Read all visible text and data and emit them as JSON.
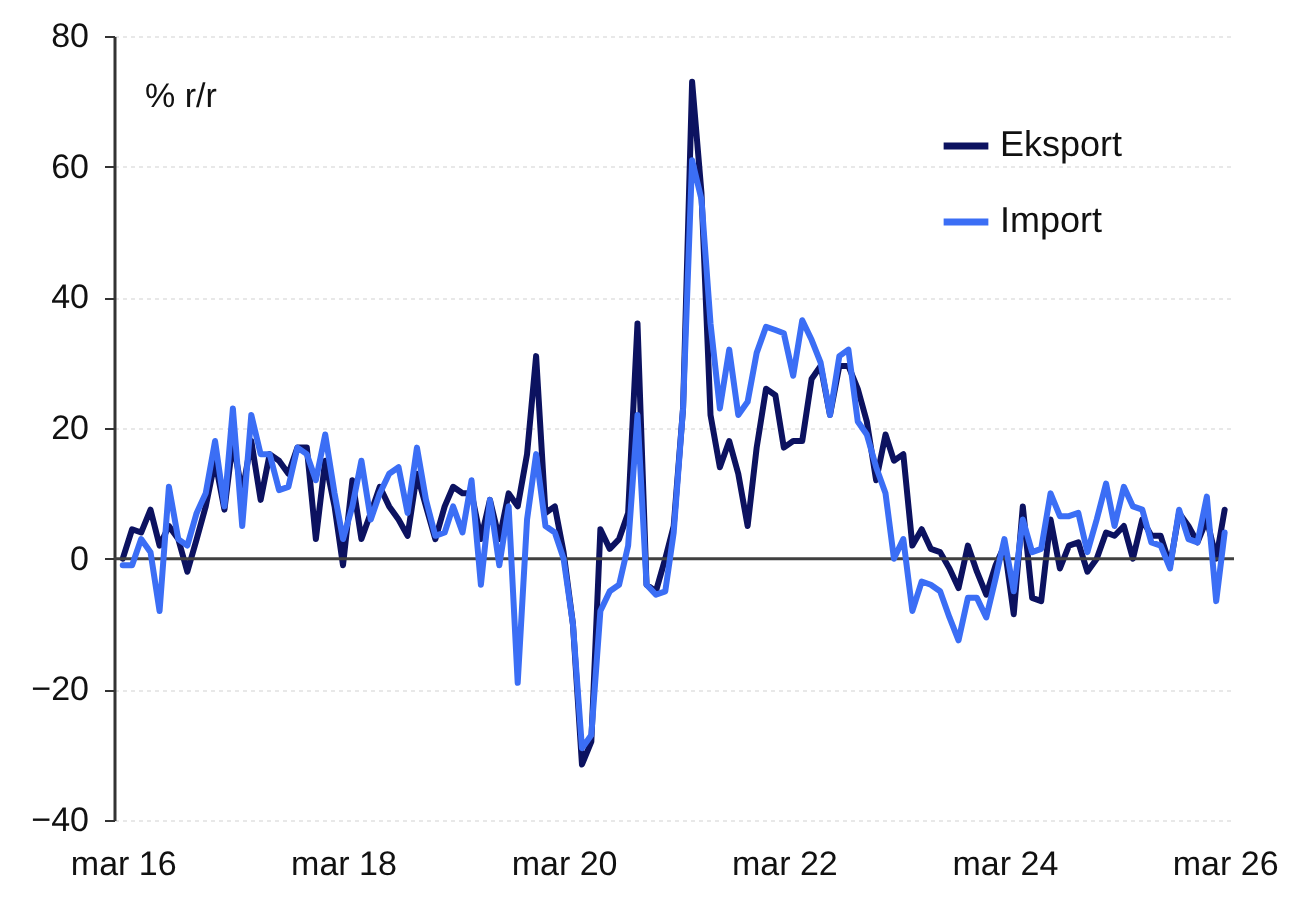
{
  "chart_data": {
    "type": "line",
    "ylabel": "% r/r",
    "x": [
      "2016-03",
      "2016-04",
      "2016-05",
      "2016-06",
      "2016-07",
      "2016-08",
      "2016-09",
      "2016-10",
      "2016-11",
      "2016-12",
      "2017-01",
      "2017-02",
      "2017-03",
      "2017-04",
      "2017-05",
      "2017-06",
      "2017-07",
      "2017-08",
      "2017-09",
      "2017-10",
      "2017-11",
      "2017-12",
      "2018-01",
      "2018-02",
      "2018-03",
      "2018-04",
      "2018-05",
      "2018-06",
      "2018-07",
      "2018-08",
      "2018-09",
      "2018-10",
      "2018-11",
      "2018-12",
      "2019-01",
      "2019-02",
      "2019-03",
      "2019-04",
      "2019-05",
      "2019-06",
      "2019-07",
      "2019-08",
      "2019-09",
      "2019-10",
      "2019-11",
      "2019-12",
      "2020-01",
      "2020-02",
      "2020-03",
      "2020-04",
      "2020-05",
      "2020-06",
      "2020-07",
      "2020-08",
      "2020-09",
      "2020-10",
      "2020-11",
      "2020-12",
      "2021-01",
      "2021-02",
      "2021-03",
      "2021-04",
      "2021-05",
      "2021-06",
      "2021-07",
      "2021-08",
      "2021-09",
      "2021-10",
      "2021-11",
      "2021-12",
      "2022-01",
      "2022-02",
      "2022-03",
      "2022-04",
      "2022-05",
      "2022-06",
      "2022-07",
      "2022-08",
      "2022-09",
      "2022-10",
      "2022-11",
      "2022-12",
      "2023-01",
      "2023-02",
      "2023-03",
      "2023-04",
      "2023-05",
      "2023-06",
      "2023-07",
      "2023-08",
      "2023-09",
      "2023-10",
      "2023-11",
      "2023-12",
      "2024-01",
      "2024-02",
      "2024-03",
      "2024-04",
      "2024-05",
      "2024-06",
      "2024-07",
      "2024-08",
      "2024-09",
      "2024-10",
      "2024-11",
      "2024-12",
      "2025-01",
      "2025-02",
      "2025-03",
      "2025-04",
      "2025-05",
      "2025-06",
      "2025-07",
      "2025-08",
      "2025-09",
      "2025-10",
      "2025-11",
      "2025-12",
      "2026-01",
      "2026-02",
      "2026-03"
    ],
    "series": [
      {
        "name": "Eksport",
        "color": "#0c1260",
        "values": [
          0,
          4.5,
          4,
          7.5,
          2,
          5,
          3,
          -2,
          3,
          8,
          15,
          7.5,
          18,
          10,
          18,
          9,
          16,
          15,
          13,
          17,
          17,
          3,
          15,
          8,
          -1,
          12,
          3,
          7,
          11,
          8,
          6,
          3.5,
          13,
          8,
          3,
          8,
          11,
          10,
          10,
          3,
          9,
          3,
          10,
          8,
          16,
          31,
          7,
          8,
          1,
          -10,
          -31.5,
          -28,
          4.5,
          1.5,
          3,
          7,
          36,
          -4,
          -5,
          0,
          5,
          23,
          73,
          56,
          22,
          14,
          18,
          13,
          5,
          17,
          26,
          25,
          17,
          18,
          18,
          27.5,
          29.5,
          22,
          29.5,
          29.5,
          26,
          21,
          12,
          19,
          15,
          16,
          2,
          4.5,
          1.5,
          1,
          -1.5,
          -4.5,
          2,
          -2,
          -5.5,
          -1,
          2,
          -8.5,
          8,
          -6,
          -6.5,
          6,
          -1.5,
          2,
          2.5,
          -2,
          0,
          4,
          3.5,
          5,
          0,
          6,
          3.5,
          3.5,
          -1,
          7,
          5,
          2.5,
          6,
          0,
          7.5
        ]
      },
      {
        "name": "Import",
        "color": "#3b6ef5",
        "values": [
          -1,
          -1,
          3,
          1,
          -8,
          11,
          3,
          2,
          7,
          10,
          18,
          8,
          23,
          5,
          22,
          16,
          16,
          10.5,
          11,
          17,
          16,
          12,
          19,
          10,
          3,
          8,
          15,
          6,
          10,
          13,
          14,
          7,
          17,
          9,
          3.5,
          4,
          8,
          4,
          12,
          -4,
          9,
          -1,
          8,
          -19,
          6,
          16,
          5,
          4,
          0,
          -10,
          -29,
          -27,
          -8,
          -5,
          -4,
          2,
          22,
          -4,
          -5.5,
          -5,
          4,
          23,
          61,
          55,
          36,
          23,
          32,
          22,
          24,
          31.5,
          35.5,
          35,
          34.5,
          28,
          36.5,
          33.5,
          30,
          22,
          31,
          32,
          21,
          19,
          14,
          10,
          0,
          3,
          -8,
          -3.5,
          -4,
          -5,
          -9,
          -12.5,
          -6,
          -6,
          -9,
          -3,
          3,
          -5,
          6,
          1,
          1.5,
          10,
          6.5,
          6.5,
          7,
          1,
          6,
          11.5,
          5,
          11,
          8,
          7.5,
          2.5,
          2,
          -1.5,
          7.5,
          3,
          2.5,
          9.5,
          -6.5,
          4
        ]
      }
    ],
    "xlim": [
      "2016-02",
      "2026-04"
    ],
    "xticks": [
      {
        "value": "2016-03",
        "label": "mar 16"
      },
      {
        "value": "2018-03",
        "label": "mar 18"
      },
      {
        "value": "2020-03",
        "label": "mar 20"
      },
      {
        "value": "2022-03",
        "label": "mar 22"
      },
      {
        "value": "2024-03",
        "label": "mar 24"
      },
      {
        "value": "2026-03",
        "label": "mar 26"
      }
    ],
    "ylim": [
      -40,
      80
    ],
    "yticks": [
      -40,
      -20,
      0,
      20,
      40,
      60,
      80
    ],
    "grid": "y",
    "legend": "top right",
    "ref_lines": [
      {
        "axis": "y",
        "value": 0,
        "color": "#404040"
      }
    ]
  }
}
